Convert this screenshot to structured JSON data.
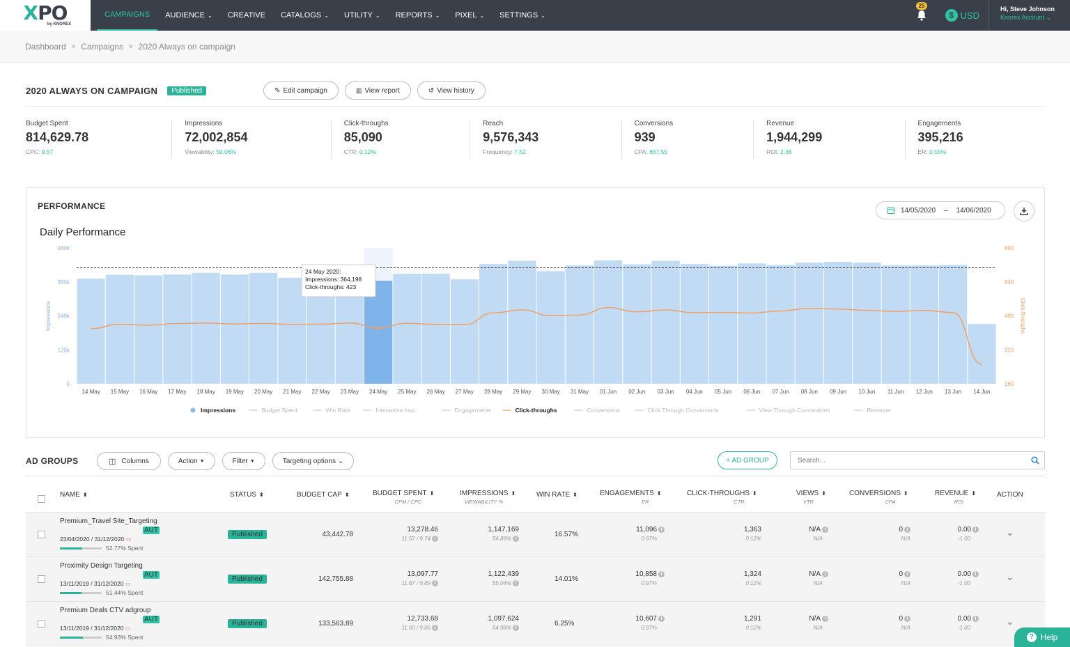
{
  "nav": {
    "logo": "XPO",
    "logo_sub": "by KNOREX",
    "items": [
      {
        "label": "CAMPAIGNS",
        "active": true,
        "caret": false
      },
      {
        "label": "AUDIENCE",
        "caret": true
      },
      {
        "label": "CREATIVE",
        "caret": false
      },
      {
        "label": "CATALOGS",
        "caret": true
      },
      {
        "label": "UTILITY",
        "caret": true
      },
      {
        "label": "REPORTS",
        "caret": true
      },
      {
        "label": "PIXEL",
        "caret": true
      },
      {
        "label": "SETTINGS",
        "caret": true
      }
    ],
    "notifications": "25",
    "currency": "USD",
    "greeting": "Hi, Steve Johnson",
    "account": "Knorex Account"
  },
  "breadcrumb": [
    "Dashboard",
    "Campaigns",
    "2020 Always on campaign"
  ],
  "campaign": {
    "title": "2020 ALWAYS ON CAMPAIGN",
    "status": "Published",
    "edit": "Edit campaign",
    "report": "View report",
    "history": "View history"
  },
  "stats": [
    {
      "label": "Budget Spent",
      "value": "814,629.78",
      "sub_label": "CPC:",
      "sub_value": "9.57"
    },
    {
      "label": "Impressions",
      "value": "72,002,854",
      "sub_label": "Viewability:",
      "sub_value": "59.06%"
    },
    {
      "label": "Click-throughs",
      "value": "85,090",
      "sub_label": "CTR:",
      "sub_value": "0.12%"
    },
    {
      "label": "Reach",
      "value": "9,576,343",
      "sub_label": "Frequency:",
      "sub_value": "7.52"
    },
    {
      "label": "Conversions",
      "value": "939",
      "sub_label": "CPA:",
      "sub_value": "867.55"
    },
    {
      "label": "Revenue",
      "value": "1,944,299",
      "sub_label": "ROI:",
      "sub_value": "2.38"
    },
    {
      "label": "Engagements",
      "value": "395,216",
      "sub_label": "ER:",
      "sub_value": "0.55%"
    }
  ],
  "performance": {
    "title": "PERFORMANCE",
    "date_from": "14/05/2020",
    "date_sep": "–",
    "date_to": "14/06/2020"
  },
  "chart_data": {
    "type": "bar",
    "title": "Daily Performance",
    "ylabel": "Impressions",
    "y2label": "Click-throughs",
    "ylim": [
      0,
      480000
    ],
    "y2lim": [
      160,
      800
    ],
    "yticks": [
      "0",
      "120k",
      "240k",
      "360k",
      "480k"
    ],
    "y2ticks": [
      "160",
      "320",
      "480",
      "640",
      "800"
    ],
    "categories": [
      "14 May",
      "15 May",
      "16 May",
      "17 May",
      "18 May",
      "19 May",
      "20 May",
      "21 May",
      "22 May",
      "23 May",
      "24 May",
      "25 May",
      "26 May",
      "27 May",
      "28 May",
      "29 May",
      "30 May",
      "31 May",
      "01 Jun",
      "02 Jun",
      "03 Jun",
      "04 Jun",
      "05 Jun",
      "06 Jun",
      "07 Jun",
      "08 Jun",
      "09 Jun",
      "10 Jun",
      "11 Jun",
      "12 Jun",
      "13 Jun",
      "14 Jun"
    ],
    "series": [
      {
        "name": "Impressions",
        "axis": "left",
        "type": "bar",
        "color": "#c2dbf5",
        "highlight_color": "#7fb4ea",
        "values": [
          372000,
          385000,
          383000,
          386000,
          392000,
          386000,
          392000,
          375000,
          375000,
          390000,
          364198,
          389000,
          389000,
          369000,
          423000,
          435000,
          398000,
          418000,
          436000,
          422000,
          435000,
          423000,
          417000,
          425000,
          420000,
          428000,
          431000,
          428000,
          418000,
          418000,
          420000,
          212000
        ]
      },
      {
        "name": "Click-throughs",
        "axis": "right",
        "type": "line",
        "color": "#f0a066",
        "values": [
          420,
          440,
          436,
          444,
          446,
          442,
          444,
          440,
          441,
          446,
          423,
          445,
          440,
          438,
          494,
          508,
          481,
          484,
          519,
          499,
          508,
          495,
          496,
          493,
          503,
          515,
          512,
          506,
          501,
          506,
          495,
          252
        ]
      }
    ],
    "reference_line": 410000,
    "tooltip": {
      "index": 10,
      "date": "24 May 2020:",
      "line1": "Impressions: 364,198",
      "line2": "Click-throughs: 423"
    },
    "legend": [
      {
        "name": "Impressions",
        "active": true,
        "kind": "dot",
        "color": "#8cbbea"
      },
      {
        "name": "Budget Spent",
        "active": false
      },
      {
        "name": "Win Rate",
        "active": false
      },
      {
        "name": "Interactive Imp.",
        "active": false
      },
      {
        "name": "Engagements",
        "active": false
      },
      {
        "name": "Click-throughs",
        "active": true,
        "kind": "line",
        "color": "#f0a066"
      },
      {
        "name": "Conversions",
        "active": false
      },
      {
        "name": "Click Through Conversions",
        "active": false
      },
      {
        "name": "View Through Conversions",
        "active": false
      },
      {
        "name": "Revenue",
        "active": false
      }
    ]
  },
  "adgroups": {
    "title": "AD GROUPS",
    "columns_btn": "Columns",
    "action_btn": "Action",
    "filter_btn": "Filter",
    "targeting_btn": "Targeting options",
    "add_btn": "+ AD GROUP",
    "search_placeholder": "Search...",
    "headers": [
      {
        "label": "NAME",
        "sub": ""
      },
      {
        "label": "STATUS",
        "sub": ""
      },
      {
        "label": "BUDGET CAP",
        "sub": ""
      },
      {
        "label": "BUDGET SPENT",
        "sub": "CPM / CPC"
      },
      {
        "label": "IMPRESSIONS",
        "sub": "VIEWABILITY %"
      },
      {
        "label": "WIN RATE",
        "sub": ""
      },
      {
        "label": "ENGAGEMENTS",
        "sub": "ER"
      },
      {
        "label": "CLICK-THROUGHS",
        "sub": "CTR"
      },
      {
        "label": "VIEWS",
        "sub": "VTR"
      },
      {
        "label": "CONVERSIONS",
        "sub": "CPA"
      },
      {
        "label": "REVENUE",
        "sub": "ROI"
      },
      {
        "label": "ACTION",
        "sub": ""
      }
    ],
    "rows": [
      {
        "name": "Premium_Travel Site_Targeting",
        "auto": "AUT",
        "dates": "23/04/2020  /  31/12/2020",
        "spent_pct": 52.77,
        "spent_label": "52.77% Spent",
        "status": "Published",
        "budget_cap": "43,442.78",
        "budget_spent": "13,278.46",
        "cpm_cpc": "11.57 / 9.74",
        "impressions": "1,147,169",
        "viewability": "54.89%",
        "win_rate": "16.57%",
        "engagements": "11,096",
        "er": "0.97%",
        "clicks": "1,363",
        "ctr": "0.12%",
        "views": "N/A",
        "vtr": "N/A",
        "conversions": "0",
        "cpa": "N/A",
        "revenue": "0.00",
        "roi": "-1.00"
      },
      {
        "name": "Proximity Design Targeting",
        "auto": "AUT",
        "dates": "13/11/2019  /  31/12/2020",
        "spent_pct": 51.44,
        "spent_label": "51.44% Spent",
        "status": "Published",
        "budget_cap": "142,755.88",
        "budget_spent": "13,097.77",
        "cpm_cpc": "11.67 / 9.89",
        "impressions": "1,122,439",
        "viewability": "55.04%",
        "win_rate": "14.01%",
        "engagements": "10,858",
        "er": "0.97%",
        "clicks": "1,324",
        "ctr": "0.12%",
        "views": "N/A",
        "vtr": "N/A",
        "conversions": "0",
        "cpa": "N/A",
        "revenue": "0.00",
        "roi": "-1.00"
      },
      {
        "name": "Premium Deals CTV adgroup",
        "auto": "AUT",
        "dates": "13/11/2019  /  31/12/2020",
        "spent_pct": 54.93,
        "spent_label": "54.93% Spent",
        "status": "Published",
        "budget_cap": "133,563.89",
        "budget_spent": "12,733.68",
        "cpm_cpc": "11.60 / 9.86",
        "impressions": "1,097,624",
        "viewability": "54.98%",
        "win_rate": "6.25%",
        "engagements": "10,607",
        "er": "0.97%",
        "clicks": "1,291",
        "ctr": "0.12%",
        "views": "N/A",
        "vtr": "N/A",
        "conversions": "0",
        "cpa": "N/A",
        "revenue": "0.00",
        "roi": "-1.00"
      }
    ]
  },
  "help": "Help"
}
